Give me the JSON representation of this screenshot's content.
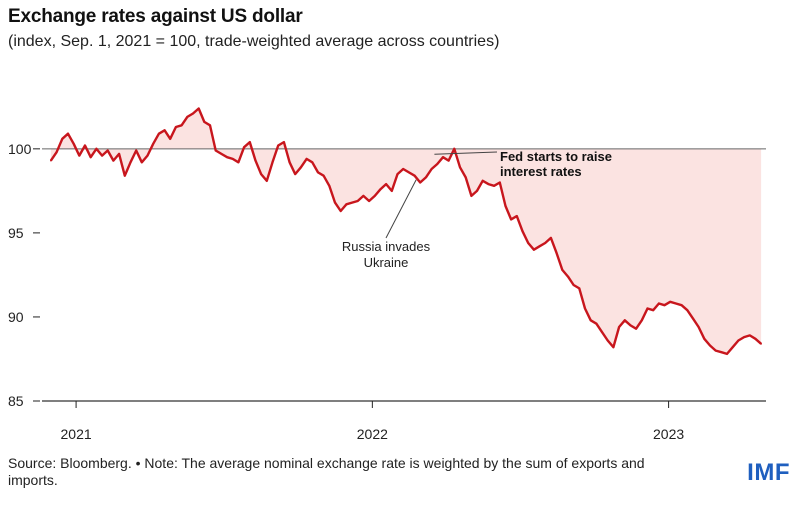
{
  "header": {
    "title": "Exchange rates against US dollar",
    "subtitle": "(index, Sep. 1, 2021 = 100, trade-weighted average across countries)"
  },
  "footer": {
    "note": "Source: Bloomberg. • Note: The average nominal exchange rate is weighted by the sum of exports and imports.",
    "logo": "IMF"
  },
  "colors": {
    "line": "#c8161d",
    "fill": "#fbe3e1",
    "baseline": "#666666",
    "axis": "#333333"
  },
  "chart_data": {
    "type": "line",
    "title": "Exchange rates against US dollar",
    "subtitle": "(index, Sep. 1, 2021 = 100, trade-weighted average across countries)",
    "xlabel": "",
    "ylabel": "",
    "xlim": [
      "2020-11-20",
      "2023-05-01"
    ],
    "ylim": [
      85,
      103.5
    ],
    "yticks": [
      85,
      90,
      95,
      100
    ],
    "ytick_labels": [
      "85",
      "90",
      "95",
      "100"
    ],
    "xticks": [
      "2021-01-01",
      "2022-01-01",
      "2023-01-01"
    ],
    "xtick_labels": [
      "2021",
      "2022",
      "2023"
    ],
    "baseline": 100,
    "grid": false,
    "fill_between_line_and_baseline": true,
    "series": [
      {
        "x": [
          "2020-12-01",
          "2020-12-08",
          "2020-12-15",
          "2020-12-22",
          "2020-12-29",
          "2021-01-05",
          "2021-01-12",
          "2021-01-19",
          "2021-01-26",
          "2021-02-02",
          "2021-02-09",
          "2021-02-16",
          "2021-02-23",
          "2021-03-02",
          "2021-03-09",
          "2021-03-16",
          "2021-03-23",
          "2021-03-30",
          "2021-04-06",
          "2021-04-13",
          "2021-04-20",
          "2021-04-27",
          "2021-05-04",
          "2021-05-11",
          "2021-05-18",
          "2021-05-25",
          "2021-06-01",
          "2021-06-08",
          "2021-06-15",
          "2021-06-22",
          "2021-06-29",
          "2021-07-06",
          "2021-07-13",
          "2021-07-20",
          "2021-07-27",
          "2021-08-03",
          "2021-08-10",
          "2021-08-17",
          "2021-08-24",
          "2021-08-31",
          "2021-09-07",
          "2021-09-14",
          "2021-09-21",
          "2021-09-28",
          "2021-10-05",
          "2021-10-12",
          "2021-10-19",
          "2021-10-26",
          "2021-11-02",
          "2021-11-09",
          "2021-11-16",
          "2021-11-23",
          "2021-11-30",
          "2021-12-07",
          "2021-12-14",
          "2021-12-21",
          "2021-12-28",
          "2022-01-04",
          "2022-01-11",
          "2022-01-18",
          "2022-01-25",
          "2022-02-01",
          "2022-02-08",
          "2022-02-15",
          "2022-02-22",
          "2022-03-01",
          "2022-03-08",
          "2022-03-15",
          "2022-03-22",
          "2022-03-29",
          "2022-04-05",
          "2022-04-12",
          "2022-04-19",
          "2022-04-26",
          "2022-05-03",
          "2022-05-10",
          "2022-05-17",
          "2022-05-24",
          "2022-05-31",
          "2022-06-07",
          "2022-06-14",
          "2022-06-21",
          "2022-06-28",
          "2022-07-05",
          "2022-07-12",
          "2022-07-19",
          "2022-07-26",
          "2022-08-02",
          "2022-08-09",
          "2022-08-16",
          "2022-08-23",
          "2022-08-30",
          "2022-09-06",
          "2022-09-13",
          "2022-09-20",
          "2022-09-27",
          "2022-10-04",
          "2022-10-11",
          "2022-10-18",
          "2022-10-25",
          "2022-11-01",
          "2022-11-08",
          "2022-11-15",
          "2022-11-22",
          "2022-11-29",
          "2022-12-06",
          "2022-12-13",
          "2022-12-20",
          "2022-12-27",
          "2023-01-03",
          "2023-01-10",
          "2023-01-17",
          "2023-01-24",
          "2023-01-31",
          "2023-02-07",
          "2023-02-14",
          "2023-02-21",
          "2023-02-28",
          "2023-03-07",
          "2023-03-14",
          "2023-03-21",
          "2023-03-28",
          "2023-04-04",
          "2023-04-11",
          "2023-04-18",
          "2023-04-25"
        ],
        "values": [
          99.3,
          99.8,
          100.6,
          100.9,
          100.3,
          99.6,
          100.2,
          99.5,
          100.0,
          99.6,
          99.9,
          99.3,
          99.7,
          98.4,
          99.2,
          99.9,
          99.2,
          99.6,
          100.3,
          100.9,
          101.1,
          100.6,
          101.3,
          101.4,
          101.9,
          102.1,
          102.4,
          101.6,
          101.4,
          99.9,
          99.7,
          99.5,
          99.4,
          99.2,
          100.1,
          100.4,
          99.3,
          98.5,
          98.1,
          99.2,
          100.2,
          100.4,
          99.2,
          98.5,
          98.9,
          99.4,
          99.2,
          98.6,
          98.4,
          97.8,
          96.8,
          96.3,
          96.7,
          96.8,
          96.9,
          97.2,
          96.9,
          97.2,
          97.6,
          97.9,
          97.5,
          98.5,
          98.8,
          98.6,
          98.4,
          98.0,
          98.3,
          98.8,
          99.1,
          99.5,
          99.3,
          100.0,
          98.9,
          98.3,
          97.2,
          97.5,
          98.1,
          97.9,
          97.8,
          98.0,
          96.6,
          95.8,
          96.0,
          95.1,
          94.4,
          94.0,
          94.2,
          94.4,
          94.7,
          93.8,
          92.8,
          92.4,
          91.9,
          91.7,
          90.5,
          89.8,
          89.6,
          89.1,
          88.6,
          88.2,
          89.4,
          89.8,
          89.5,
          89.3,
          89.8,
          90.5,
          90.4,
          90.8,
          90.7,
          90.9,
          90.8,
          90.7,
          90.4,
          89.9,
          89.4,
          88.7,
          88.3,
          88.0,
          87.9,
          87.8,
          88.2,
          88.6,
          88.8,
          88.9,
          88.7,
          88.4
        ]
      }
    ],
    "annotations": [
      {
        "text": "Russia invades Ukraine",
        "lines": [
          "Russia invades",
          "Ukraine"
        ],
        "x": "2022-02-24",
        "y": 98.4
      },
      {
        "text": "Fed starts to raise interest rates",
        "lines": [
          "Fed starts to raise",
          "interest rates"
        ],
        "x": "2022-03-16",
        "y": 99.8
      }
    ]
  }
}
